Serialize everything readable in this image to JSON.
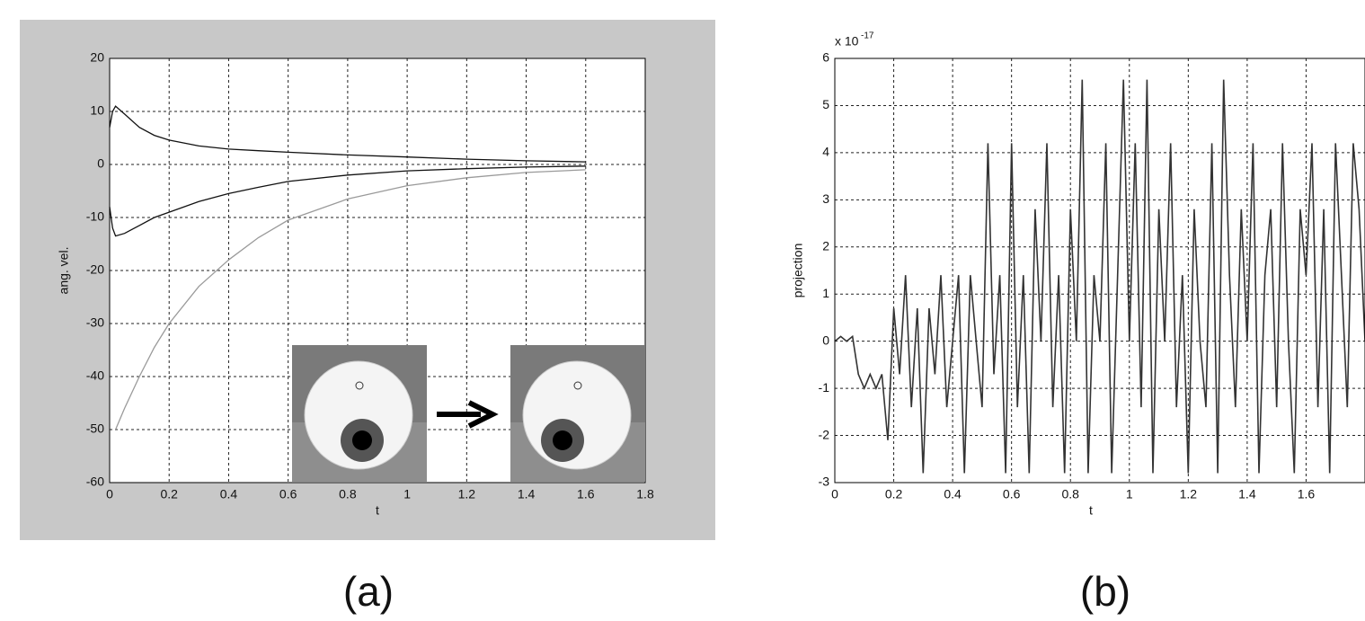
{
  "chart_data": [
    {
      "type": "line",
      "caption": "(a)",
      "xlabel": "t",
      "ylabel": "ang. vel.",
      "x": [
        0,
        0.01,
        0.02,
        0.05,
        0.1,
        0.15,
        0.2,
        0.3,
        0.4,
        0.5,
        0.6,
        0.8,
        1.0,
        1.2,
        1.4,
        1.6
      ],
      "series": [
        {
          "color": "#111111",
          "values": [
            7,
            10,
            11,
            9.5,
            7,
            5.5,
            4.6,
            3.5,
            2.9,
            2.6,
            2.3,
            1.8,
            1.4,
            1,
            0.7,
            0.5
          ]
        },
        {
          "color": "#111111",
          "values": [
            -8,
            -12,
            -13.5,
            -13,
            -11.5,
            -10,
            -9,
            -7,
            -5.5,
            -4.3,
            -3.2,
            -2,
            -1.2,
            -0.8,
            -0.5,
            -0.3
          ]
        },
        {
          "color": "#9a9a9a",
          "values": [
            null,
            null,
            -50,
            -46,
            -40,
            -34.5,
            -30,
            -23,
            -18,
            -13.8,
            -10.5,
            -6.5,
            -4,
            -2.5,
            -1.5,
            -1
          ]
        }
      ],
      "xlim": [
        0,
        1.8
      ],
      "ylim": [
        -60,
        20
      ],
      "xticks": [
        0,
        0.2,
        0.4,
        0.6,
        0.8,
        1,
        1.2,
        1.4,
        1.6,
        1.8
      ],
      "yticks": [
        -60,
        -50,
        -40,
        -30,
        -20,
        -10,
        0,
        10,
        20
      ],
      "grid": true
    },
    {
      "type": "line",
      "caption": "(b)",
      "xlabel": "t",
      "ylabel": "projection",
      "y_scale_label": {
        "base": "x 10",
        "exponent": "-17"
      },
      "x": [
        0,
        0.02,
        0.04,
        0.06,
        0.08,
        0.1,
        0.12,
        0.14,
        0.16,
        0.18,
        0.2,
        0.22,
        0.24,
        0.26,
        0.28,
        0.3,
        0.32,
        0.34,
        0.36,
        0.38,
        0.4,
        0.42,
        0.44,
        0.46,
        0.48,
        0.5,
        0.52,
        0.54,
        0.56,
        0.58,
        0.6,
        0.62,
        0.64,
        0.66,
        0.68,
        0.7,
        0.72,
        0.74,
        0.76,
        0.78,
        0.8,
        0.82,
        0.84,
        0.86,
        0.88,
        0.9,
        0.92,
        0.94,
        0.96,
        0.98,
        1.0,
        1.02,
        1.04,
        1.06,
        1.08,
        1.1,
        1.12,
        1.14,
        1.16,
        1.18,
        1.2,
        1.22,
        1.24,
        1.26,
        1.28,
        1.3,
        1.32,
        1.34,
        1.36,
        1.38,
        1.4,
        1.42,
        1.44,
        1.46,
        1.48,
        1.5,
        1.52,
        1.54,
        1.56,
        1.58,
        1.6,
        1.62,
        1.64,
        1.66,
        1.68,
        1.7,
        1.72,
        1.74,
        1.76,
        1.78,
        1.8
      ],
      "series": [
        {
          "color": "#333333",
          "values": [
            0,
            0.1,
            0,
            0.1,
            -0.7,
            -1,
            -0.7,
            -1,
            -0.7,
            -2.1,
            0.7,
            -0.7,
            1.4,
            -1.4,
            0.7,
            -2.8,
            0.7,
            -0.7,
            1.4,
            -1.4,
            0,
            1.4,
            -2.8,
            1.4,
            0,
            -1.4,
            4.2,
            -0.7,
            1.4,
            -2.8,
            4.2,
            -1.4,
            1.4,
            -2.8,
            2.8,
            0,
            4.2,
            -1.4,
            1.4,
            -2.8,
            2.8,
            0,
            5.55,
            -2.8,
            1.4,
            0,
            4.2,
            -2.8,
            1.4,
            5.55,
            0,
            4.2,
            -1.4,
            5.55,
            -2.8,
            2.8,
            0,
            4.2,
            -1.4,
            1.4,
            -2.8,
            2.8,
            0,
            -1.4,
            4.2,
            -2.8,
            5.55,
            1.4,
            -1.4,
            2.8,
            0,
            4.2,
            -2.8,
            1.4,
            2.8,
            -1.4,
            4.2,
            0,
            -2.8,
            2.8,
            1.4,
            4.2,
            -1.4,
            2.8,
            -2.8,
            4.2,
            1.4,
            -1.4,
            4.2,
            2.8,
            0
          ]
        }
      ],
      "xlim": [
        0,
        1.8
      ],
      "ylim": [
        -3,
        6
      ],
      "xticks": [
        0,
        0.2,
        0.4,
        0.6,
        0.8,
        1,
        1.2,
        1.4,
        1.6
      ],
      "yticks": [
        -3,
        -2,
        -1,
        0,
        1,
        2,
        3,
        4,
        5,
        6
      ],
      "grid": true
    }
  ]
}
